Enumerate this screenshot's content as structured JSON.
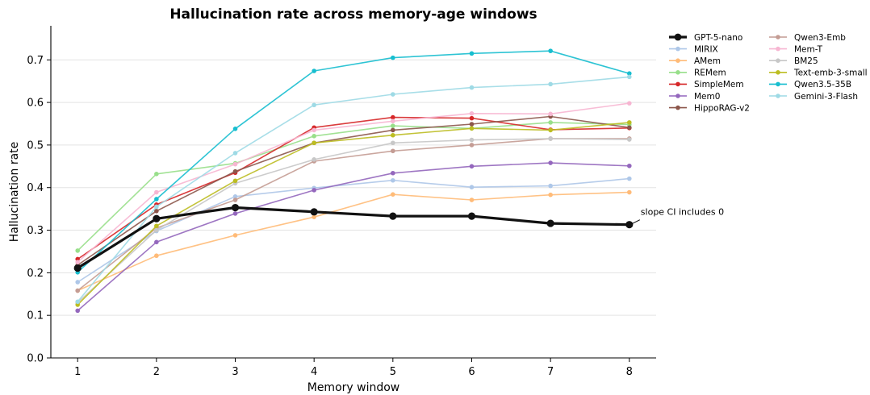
{
  "chart_data": {
    "type": "line",
    "title": "Hallucination rate across memory-age windows",
    "xlabel": "Memory window",
    "ylabel": "Hallucination rate",
    "x": [
      1,
      2,
      3,
      4,
      5,
      6,
      7,
      8
    ],
    "xlim": [
      0.66,
      8.34
    ],
    "ylim": [
      0.0,
      0.78
    ],
    "yticks": [
      0.0,
      0.1,
      0.2,
      0.3,
      0.4,
      0.5,
      0.6,
      0.7
    ],
    "ytick_labels": [
      "0.0",
      "0.1",
      "0.2",
      "0.3",
      "0.4",
      "0.5",
      "0.6",
      "0.7"
    ],
    "xtick_labels": [
      "1",
      "2",
      "3",
      "4",
      "5",
      "6",
      "7",
      "8"
    ],
    "grid": "horizontal",
    "legend_position": "outside top-right, 2 columns",
    "series": [
      {
        "name": "MIRIX",
        "color": "#aec7e8",
        "values": [
          0.178,
          0.298,
          0.379,
          0.399,
          0.417,
          0.401,
          0.404,
          0.421
        ]
      },
      {
        "name": "AMem",
        "color": "#ffbb78",
        "values": [
          0.158,
          0.24,
          0.288,
          0.331,
          0.384,
          0.371,
          0.383,
          0.389
        ]
      },
      {
        "name": "REMem",
        "color": "#98df8a",
        "values": [
          0.252,
          0.432,
          0.457,
          0.521,
          0.545,
          0.539,
          0.553,
          0.548
        ]
      },
      {
        "name": "SimpleMem",
        "color": "#d62728",
        "values": [
          0.232,
          0.36,
          0.435,
          0.541,
          0.565,
          0.563,
          0.536,
          0.54
        ]
      },
      {
        "name": "Mem0",
        "color": "#9467bd",
        "values": [
          0.111,
          0.272,
          0.339,
          0.394,
          0.434,
          0.45,
          0.458,
          0.451
        ]
      },
      {
        "name": "HippoRAG-v2",
        "color": "#8c564b",
        "values": [
          0.218,
          0.345,
          0.438,
          0.505,
          0.535,
          0.549,
          0.567,
          0.541
        ]
      },
      {
        "name": "Qwen3-Emb",
        "color": "#c49c94",
        "values": [
          0.158,
          0.305,
          0.371,
          0.462,
          0.486,
          0.5,
          0.515,
          0.515
        ]
      },
      {
        "name": "Mem-T",
        "color": "#f7b6d2",
        "values": [
          0.225,
          0.389,
          0.455,
          0.535,
          0.556,
          0.574,
          0.573,
          0.598
        ]
      },
      {
        "name": "BM25",
        "color": "#c7c7c7",
        "values": [
          0.13,
          0.3,
          0.41,
          0.466,
          0.505,
          0.512,
          0.515,
          0.513
        ]
      },
      {
        "name": "Text-emb-3-small",
        "color": "#bcbd22",
        "values": [
          0.125,
          0.31,
          0.416,
          0.505,
          0.523,
          0.539,
          0.535,
          0.553
        ]
      },
      {
        "name": "Qwen3.5-35B",
        "color": "#17becf",
        "values": [
          0.201,
          0.373,
          0.538,
          0.674,
          0.705,
          0.715,
          0.721,
          0.668
        ]
      },
      {
        "name": "Gemini-3-Flash",
        "color": "#9edae5",
        "values": [
          0.132,
          0.355,
          0.481,
          0.594,
          0.619,
          0.635,
          0.643,
          0.66
        ]
      },
      {
        "name": "GPT-5-nano",
        "color": "#111111",
        "highlight": true,
        "values": [
          0.211,
          0.327,
          0.353,
          0.343,
          0.333,
          0.333,
          0.316,
          0.313
        ]
      }
    ],
    "legend_order": [
      "GPT-5-nano",
      "MIRIX",
      "AMem",
      "REMem",
      "SimpleMem",
      "Mem0",
      "HippoRAG-v2",
      "Qwen3-Emb",
      "Mem-T",
      "BM25",
      "Text-emb-3-small",
      "Qwen3.5-35B",
      "Gemini-3-Flash"
    ],
    "annotation": {
      "text": "slope CI includes 0",
      "series": "GPT-5-nano",
      "x": 8,
      "y": 0.313
    }
  }
}
